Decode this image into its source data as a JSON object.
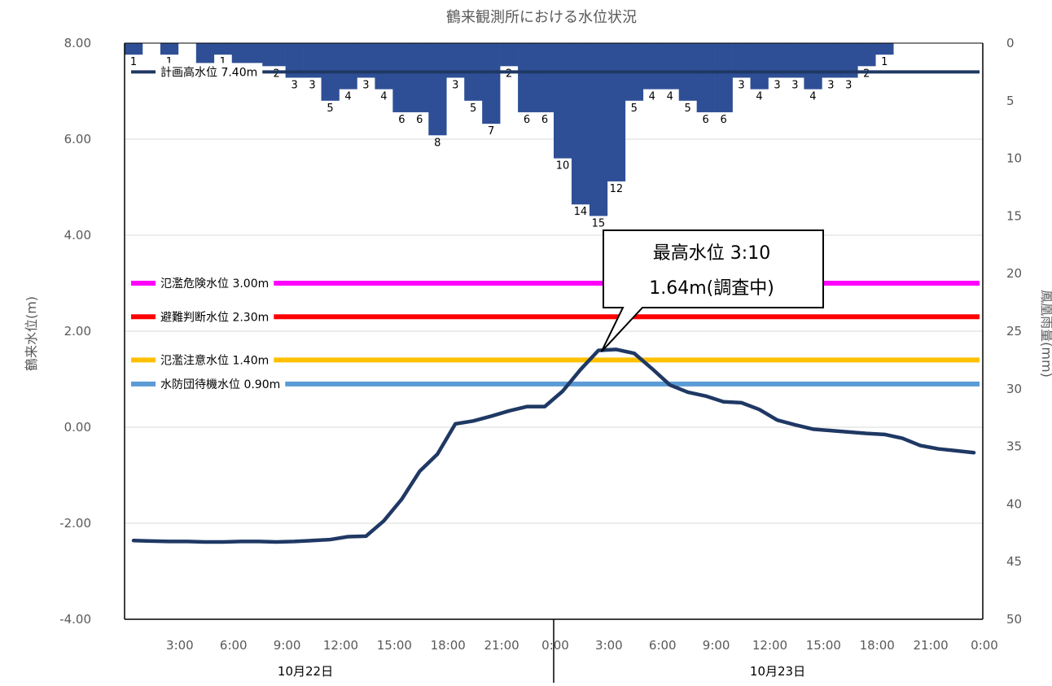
{
  "chart_data": {
    "type": "line",
    "title": "鶴来観測所における水位状況",
    "ylabel": "鶴来水位(m)",
    "y2label": "鳳凰雨量(mm)",
    "ylim": [
      -4,
      8
    ],
    "y2lim": [
      0,
      50
    ],
    "y2_inverted": true,
    "y_ticks": [
      "8.00",
      "6.00",
      "4.00",
      "2.00",
      "0.00",
      "-2.00",
      "-4.00"
    ],
    "y2_ticks": [
      "0",
      "5",
      "10",
      "15",
      "20",
      "25",
      "30",
      "35",
      "40",
      "45",
      "50"
    ],
    "x_tick_labels": [
      "3:00",
      "6:00",
      "9:00",
      "12:00",
      "15:00",
      "18:00",
      "21:00",
      "0:00",
      "3:00",
      "6:00",
      "9:00",
      "12:00",
      "15:00",
      "18:00",
      "21:00",
      "0:00"
    ],
    "date_labels": [
      "10月22日",
      "10月23日"
    ],
    "grid": true,
    "water_level": {
      "color": "#1f3864",
      "hours": [
        1,
        2,
        3,
        4,
        5,
        6,
        7,
        8,
        9,
        10,
        11,
        12,
        13,
        14,
        15,
        16,
        17,
        18,
        19,
        20,
        21,
        22,
        23,
        24,
        25,
        26,
        27,
        28,
        29,
        30,
        31,
        32,
        33,
        34,
        35,
        36,
        37,
        38,
        39,
        40,
        41,
        42,
        43,
        44,
        45,
        46,
        47,
        48
      ],
      "values": [
        -2.36,
        -2.37,
        -2.38,
        -2.38,
        -2.39,
        -2.39,
        -2.38,
        -2.38,
        -2.39,
        -2.38,
        -2.36,
        -2.34,
        -2.28,
        -2.27,
        -1.95,
        -1.5,
        -0.92,
        -0.56,
        0.07,
        0.13,
        0.23,
        0.34,
        0.43,
        0.43,
        0.75,
        1.2,
        1.6,
        1.62,
        1.54,
        1.22,
        0.88,
        0.73,
        0.65,
        0.53,
        0.51,
        0.37,
        0.15,
        0.05,
        -0.04,
        -0.07,
        -0.1,
        -0.13,
        -0.15,
        -0.23,
        -0.38,
        -0.45,
        -0.49,
        -0.53
      ]
    },
    "rainfall": {
      "color": "#2e4f96",
      "hours": [
        1,
        2,
        3,
        4,
        5,
        6,
        7,
        8,
        9,
        10,
        11,
        12,
        13,
        14,
        15,
        16,
        17,
        18,
        19,
        20,
        21,
        22,
        23,
        24,
        25,
        26,
        27,
        28,
        29,
        30,
        31,
        32,
        33,
        34,
        35,
        36,
        37,
        38,
        39,
        40,
        41,
        42,
        43,
        44,
        45,
        46,
        47,
        48
      ],
      "values": [
        1,
        0,
        1,
        0,
        2,
        1,
        2,
        2,
        2,
        3,
        3,
        5,
        4,
        3,
        4,
        6,
        6,
        8,
        3,
        5,
        7,
        2,
        6,
        6,
        10,
        14,
        15,
        12,
        5,
        4,
        4,
        5,
        6,
        6,
        3,
        4,
        3,
        3,
        4,
        3,
        3,
        2,
        1,
        0,
        0,
        0,
        0,
        0
      ],
      "labels": [
        "1",
        "",
        "1",
        "",
        "2",
        "1",
        "2",
        "2",
        "2",
        "3",
        "3",
        "5",
        "4",
        "3",
        "4",
        "6",
        "6",
        "8",
        "3",
        "5",
        "7",
        "2",
        "6",
        "6",
        "10",
        "14",
        "15",
        "12",
        "5",
        "4",
        "4",
        "5",
        "6",
        "6",
        "3",
        "4",
        "3",
        "3",
        "4",
        "3",
        "3",
        "2",
        "1",
        "",
        "",
        "",
        "",
        ""
      ]
    },
    "reference_lines": [
      {
        "label": "計画高水位 7.40m",
        "value": 7.4,
        "color": "#1f3864"
      },
      {
        "label": "氾濫危険水位 3.00m",
        "value": 3.0,
        "color": "#ff00ff"
      },
      {
        "label": "避難判断水位 2.30m",
        "value": 2.3,
        "color": "#ff0000"
      },
      {
        "label": "氾濫注意水位 1.40m",
        "value": 1.4,
        "color": "#ffc000"
      },
      {
        "label": "水防団待機水位 0.90m",
        "value": 0.9,
        "color": "#5b9bd5"
      }
    ],
    "callout": {
      "line1": "最高水位 3:10",
      "line2": "1.64m(調査中)",
      "point_hour": 27.17,
      "point_value": 1.64
    }
  }
}
